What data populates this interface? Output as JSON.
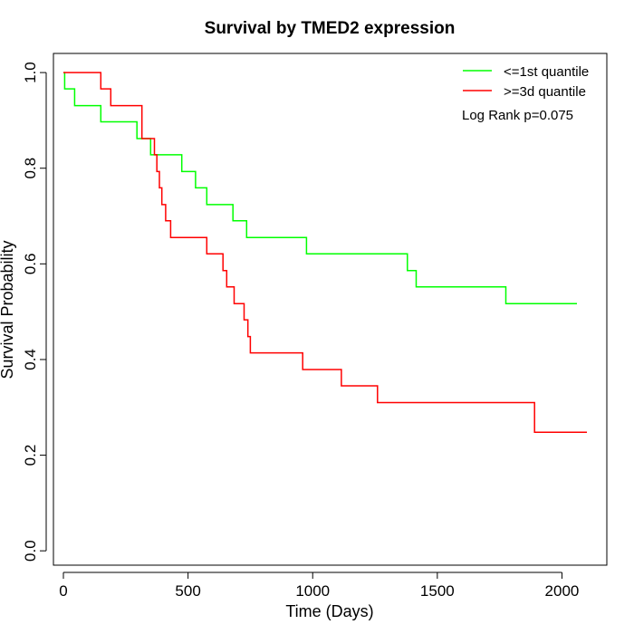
{
  "chart_data": {
    "type": "line",
    "title": "Survival by TMED2 expression",
    "xlabel": "Time (Days)",
    "ylabel": "Survival Probability",
    "xlim": [
      -40,
      2180
    ],
    "ylim": [
      -0.03,
      1.04
    ],
    "xticks": [
      0,
      500,
      1000,
      1500,
      2000
    ],
    "yticks": [
      0.0,
      0.2,
      0.4,
      0.6,
      0.8,
      1.0
    ],
    "xtick_labels": [
      "0",
      "500",
      "1000",
      "1500",
      "2000"
    ],
    "ytick_labels": [
      "0.0",
      "0.2",
      "0.4",
      "0.6",
      "0.8",
      "1.0"
    ],
    "grid": false,
    "legend_position": "top-right",
    "annotation": "Log Rank p=0.075",
    "series": [
      {
        "name": "<=1st quantile",
        "color": "#00FF00",
        "step": true,
        "x": [
          0,
          5,
          45,
          150,
          295,
          350,
          475,
          530,
          575,
          680,
          735,
          975,
          1380,
          1415,
          1775,
          2060
        ],
        "y": [
          1.0,
          0.966,
          0.931,
          0.897,
          0.862,
          0.828,
          0.793,
          0.759,
          0.724,
          0.69,
          0.655,
          0.621,
          0.586,
          0.552,
          0.517,
          0.517
        ]
      },
      {
        "name": ">=3d quantile",
        "color": "#FF0000",
        "step": true,
        "x": [
          0,
          150,
          190,
          315,
          365,
          375,
          385,
          395,
          410,
          430,
          575,
          640,
          655,
          685,
          725,
          740,
          750,
          960,
          1115,
          1260,
          1890,
          2100
        ],
        "y": [
          1.0,
          0.966,
          0.931,
          0.862,
          0.828,
          0.793,
          0.759,
          0.724,
          0.69,
          0.655,
          0.621,
          0.586,
          0.552,
          0.517,
          0.483,
          0.448,
          0.414,
          0.379,
          0.345,
          0.31,
          0.248,
          0.248
        ]
      }
    ]
  }
}
